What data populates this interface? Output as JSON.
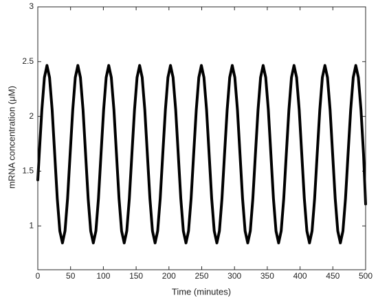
{
  "chart_data": {
    "type": "line",
    "xlabel": "Time (minutes)",
    "ylabel": "mRNA concentration (μM)",
    "xlim": [
      0,
      500
    ],
    "xticks": [
      0,
      50,
      100,
      150,
      200,
      250,
      300,
      350,
      400,
      450,
      500
    ],
    "ylim": [
      0.6,
      3
    ],
    "yticks": [
      1,
      1.5,
      2,
      2.5,
      3
    ],
    "grid": false,
    "x": [
      0,
      2.2,
      6.2,
      10.1,
      14,
      17.9,
      21.9,
      25.8,
      29.7,
      33.6,
      37.6,
      41.5,
      45.4,
      49.3,
      53.3,
      57.2,
      61.1,
      65,
      69,
      72.9,
      76.8,
      80.7,
      84.7,
      88.6,
      92.5,
      96.4,
      100.4,
      104.3,
      108.2,
      112.1,
      116.1,
      120,
      123.9,
      127.8,
      131.8,
      135.7,
      139.6,
      143.5,
      147.5,
      151.4,
      155.3,
      159.2,
      163.2,
      167.1,
      171,
      174.9,
      178.9,
      182.8,
      186.7,
      190.6,
      194.6,
      198.5,
      202.4,
      206.3,
      210.3,
      214.2,
      218.1,
      222,
      226,
      229.9,
      233.8,
      237.7,
      241.7,
      245.6,
      249.5,
      253.4,
      257.4,
      261.3,
      265.2,
      269.1,
      273.1,
      277,
      280.9,
      284.8,
      288.8,
      292.7,
      296.6,
      300.5,
      304.5,
      308.4,
      312.3,
      316.2,
      320.2,
      324.1,
      328,
      331.9,
      335.9,
      339.8,
      343.7,
      347.6,
      351.6,
      355.5,
      359.4,
      363.3,
      367.3,
      371.2,
      375.1,
      379,
      383,
      386.9,
      390.8,
      394.7,
      398.7,
      402.6,
      406.5,
      410.4,
      414.4,
      418.3,
      422.2,
      426.1,
      430.1,
      434,
      437.9,
      441.8,
      445.8,
      449.7,
      453.6,
      457.5,
      461.5,
      465.4,
      469.3,
      473.2,
      477.2,
      481.1,
      485,
      488.9,
      492.9,
      496.8,
      500
    ],
    "series": [
      {
        "color": "#000000",
        "values": [
          1.42,
          1.655,
          2.06,
          2.356,
          2.465,
          2.356,
          2.06,
          1.655,
          1.25,
          0.954,
          0.845,
          0.954,
          1.25,
          1.655,
          2.06,
          2.356,
          2.465,
          2.356,
          2.06,
          1.655,
          1.25,
          0.954,
          0.845,
          0.954,
          1.25,
          1.655,
          2.06,
          2.356,
          2.465,
          2.356,
          2.06,
          1.655,
          1.25,
          0.954,
          0.845,
          0.954,
          1.25,
          1.655,
          2.06,
          2.356,
          2.465,
          2.356,
          2.06,
          1.655,
          1.25,
          0.954,
          0.845,
          0.954,
          1.25,
          1.655,
          2.06,
          2.356,
          2.465,
          2.356,
          2.06,
          1.655,
          1.25,
          0.954,
          0.845,
          0.954,
          1.25,
          1.655,
          2.06,
          2.356,
          2.465,
          2.356,
          2.06,
          1.655,
          1.25,
          0.954,
          0.845,
          0.954,
          1.25,
          1.655,
          2.06,
          2.356,
          2.465,
          2.356,
          2.06,
          1.655,
          1.25,
          0.954,
          0.845,
          0.954,
          1.25,
          1.655,
          2.06,
          2.356,
          2.465,
          2.356,
          2.06,
          1.655,
          1.25,
          0.954,
          0.845,
          0.954,
          1.25,
          1.655,
          2.06,
          2.356,
          2.465,
          2.356,
          2.06,
          1.655,
          1.25,
          0.954,
          0.845,
          0.954,
          1.25,
          1.655,
          2.06,
          2.356,
          2.465,
          2.356,
          2.06,
          1.655,
          1.25,
          0.954,
          0.845,
          0.954,
          1.25,
          1.655,
          2.06,
          2.356,
          2.465,
          2.356,
          2.06,
          1.655,
          1.2
        ]
      }
    ]
  }
}
